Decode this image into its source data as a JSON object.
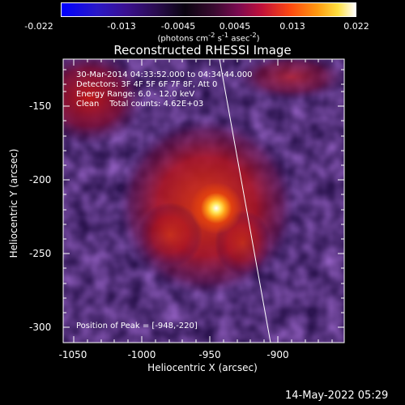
{
  "colorbar": {
    "tick_labels": [
      "-0.022",
      "-0.013",
      "-0.0045",
      "0.0045",
      "0.013",
      "0.022"
    ],
    "unit_html": "(photons cm<sup>-2</sup> s<sup>-1</sup> asec<sup>-2</sup>)"
  },
  "image": {
    "title": "Reconstructed RHESSI Image",
    "time_range": "30-Mar-2014 04:33:52.000 to 04:34:44.000",
    "detectors": "Detectors: 3F 4F 5F 6F 7F 8F, Att 0",
    "energy_range": "Energy Range: 6.0 - 12.0 keV",
    "method_counts": "Clean    Total counts: 4.62E+03",
    "peak_position": "Position of Peak = [-948,-220]"
  },
  "axes": {
    "xlabel": "Heliocentric X (arcsec)",
    "ylabel": "Heliocentric Y (arcsec)",
    "x_ticks": [
      "-1050",
      "-1000",
      "-950",
      "-900"
    ],
    "y_ticks": [
      "-150",
      "-200",
      "-250",
      "-300"
    ],
    "x_values": [
      -1050,
      -1000,
      -950,
      -900
    ],
    "y_values": [
      -150,
      -200,
      -250,
      -300
    ]
  },
  "footer": {
    "date": "14-May-2022 05:29"
  }
}
